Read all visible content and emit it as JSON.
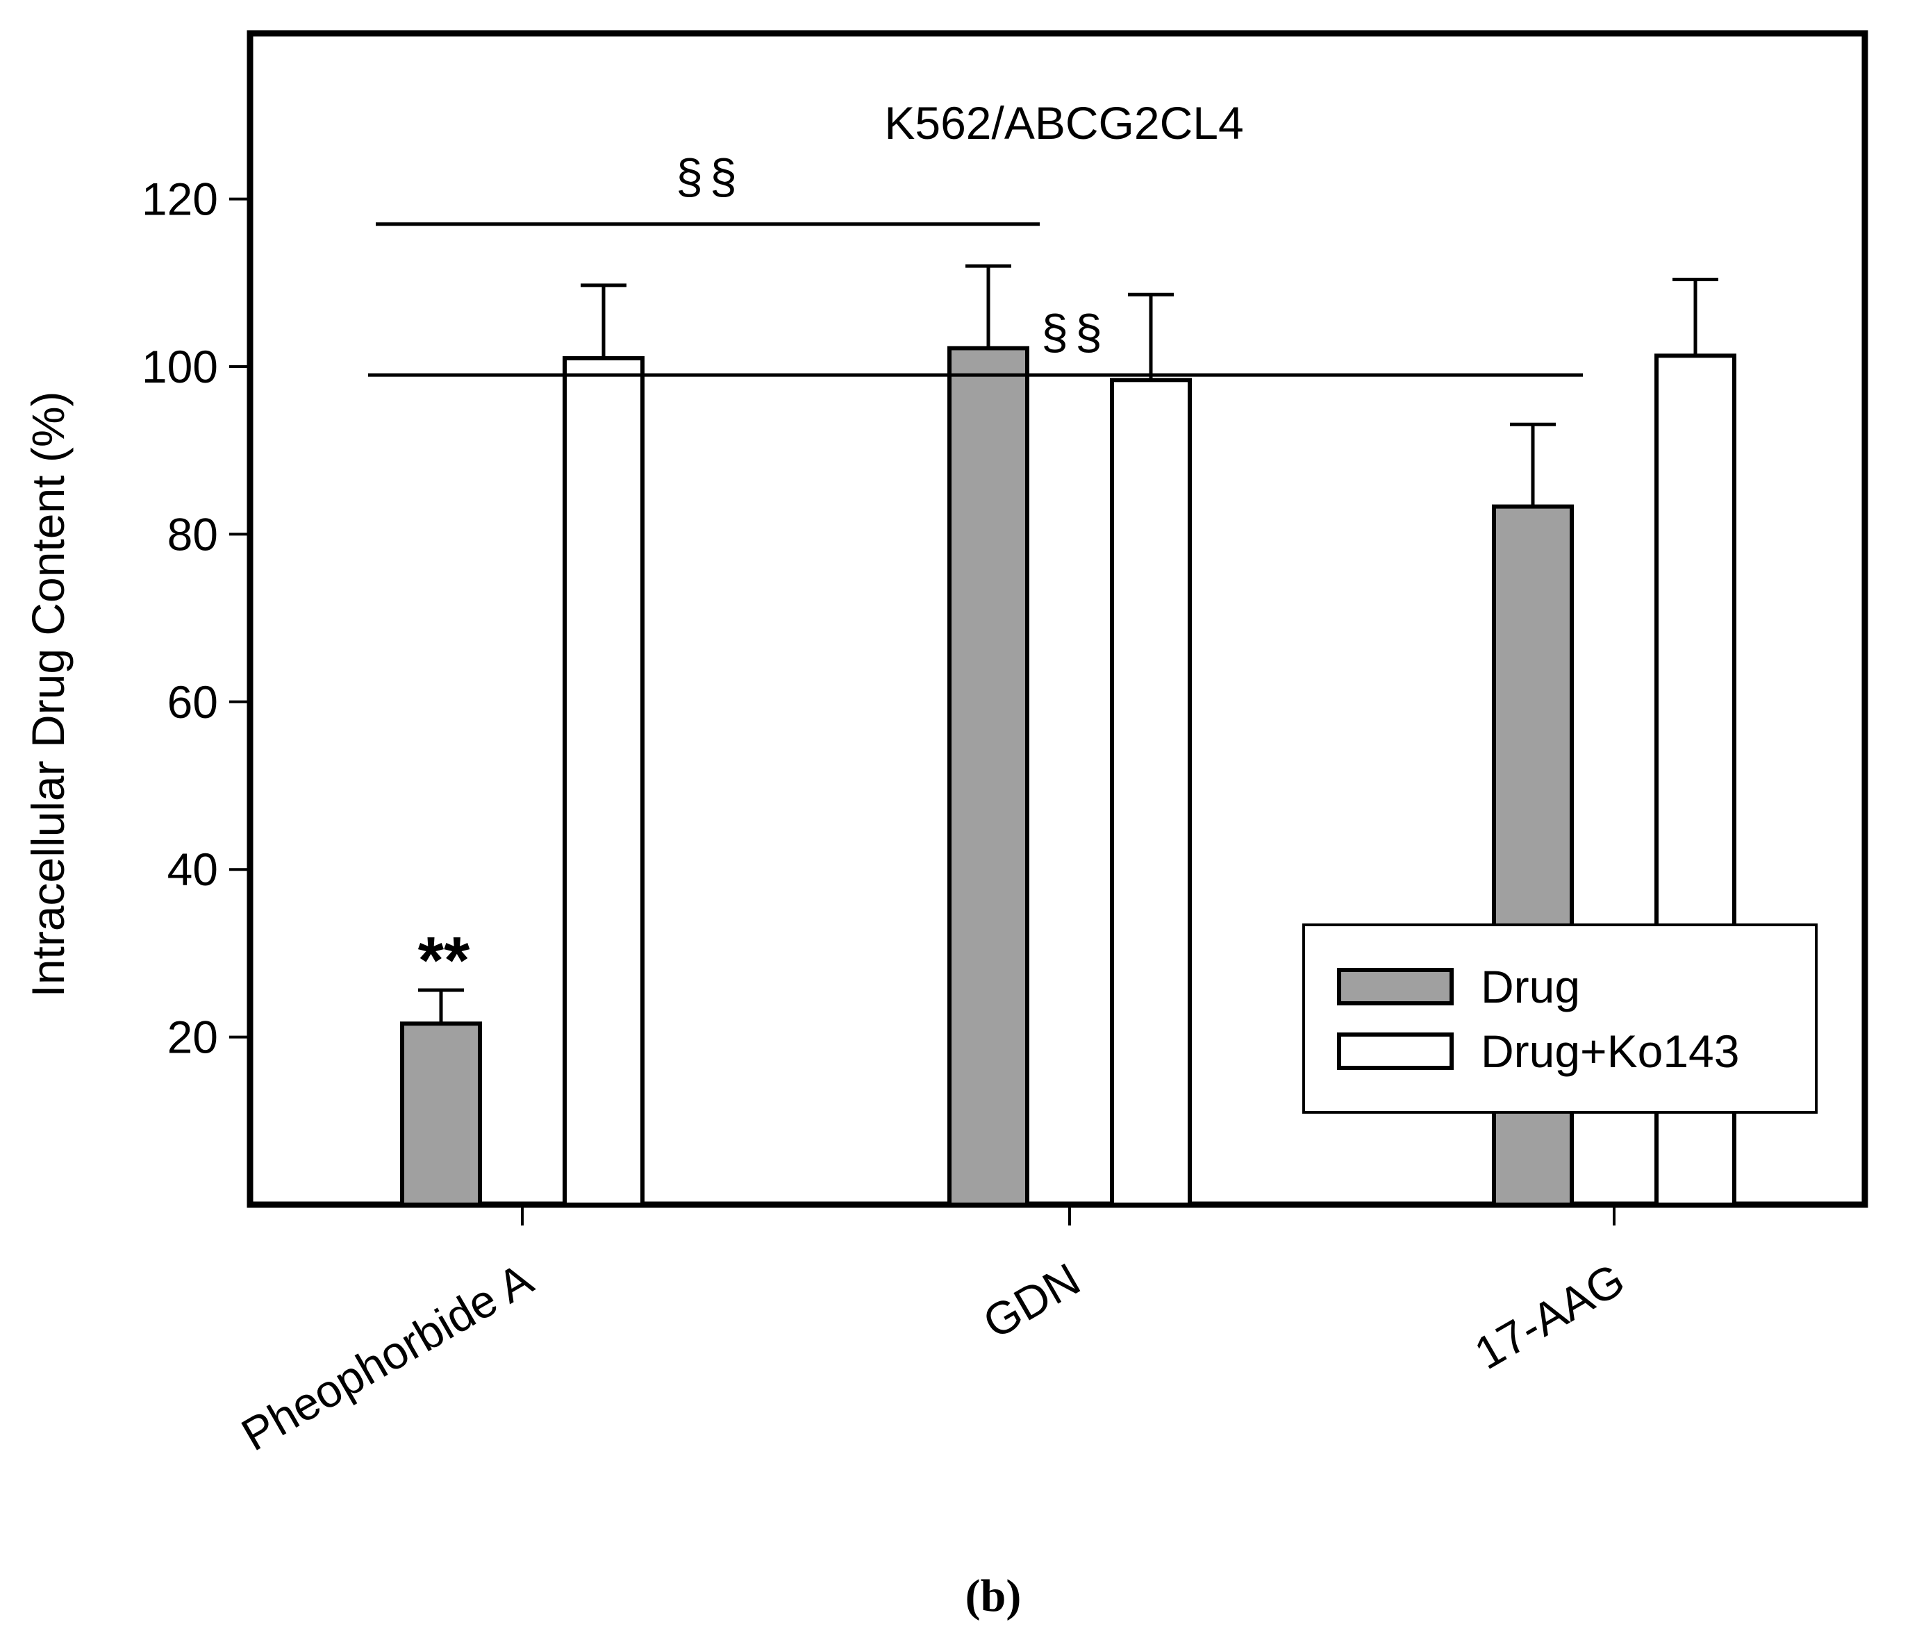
{
  "chart_data": {
    "type": "bar",
    "panel_label": "(b)",
    "title": "K562/ABCG2CL4",
    "ylabel": "Intracellular Drug Content (%)",
    "xlabel": "",
    "ylim": [
      0,
      140
    ],
    "yticks": [
      20,
      40,
      60,
      80,
      100,
      120
    ],
    "grid": false,
    "categories": [
      "Pheophorbide A",
      "GDN",
      "17-AAG"
    ],
    "series": [
      {
        "name": "Drug",
        "color": "#a0a0a0",
        "values": [
          21.6,
          102.2,
          83.3
        ],
        "errors": [
          4.0,
          9.8,
          9.8
        ]
      },
      {
        "name": "Drug+Ko143",
        "color": "#ffffff",
        "values": [
          101.0,
          98.4,
          101.3
        ],
        "errors": [
          8.7,
          10.2,
          9.1
        ]
      }
    ],
    "significance": [
      {
        "label": "§§",
        "from_category": 0,
        "to_category": 1,
        "y": 117
      },
      {
        "label": "§§",
        "from_category": 0,
        "to_category": 2,
        "y": 99
      }
    ],
    "annotations": [
      {
        "label": "**",
        "category": 0,
        "series": 0
      }
    ],
    "legend": {
      "position": "bottom-right",
      "entries": [
        "Drug",
        "Drug+Ko143"
      ]
    }
  }
}
